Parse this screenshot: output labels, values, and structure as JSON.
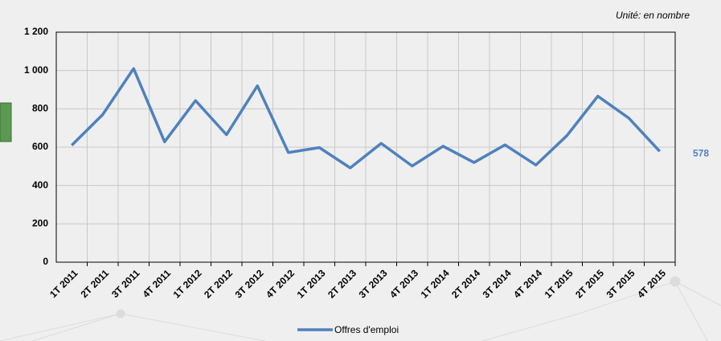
{
  "chart_data": {
    "type": "line",
    "annotation": "Unité: en nombre",
    "categories": [
      "1T 2011",
      "2T 2011",
      "3T 2011",
      "4T 2011",
      "1T 2012",
      "2T 2012",
      "3T 2012",
      "4T 2012",
      "1T 2013",
      "2T 2013",
      "3T 2013",
      "4T 2013",
      "1T 2014",
      "2T 2014",
      "3T 2014",
      "4T 2014",
      "1T 2015",
      "2T 2015",
      "3T 2015",
      "4T 2015"
    ],
    "series": [
      {
        "name": "Offres d'emploi",
        "color": "#4f81bd",
        "values": [
          610,
          770,
          1010,
          628,
          843,
          665,
          920,
          572,
          598,
          492,
          620,
          502,
          605,
          520,
          612,
          507,
          660,
          866,
          752,
          578
        ]
      }
    ],
    "ylim": [
      0,
      1200
    ],
    "yticks": [
      0,
      200,
      400,
      600,
      800,
      {
        "value": 1000,
        "label": "1 000"
      },
      {
        "value": 1200,
        "label": "1 200"
      }
    ],
    "grid": true,
    "legend": "bottom"
  }
}
